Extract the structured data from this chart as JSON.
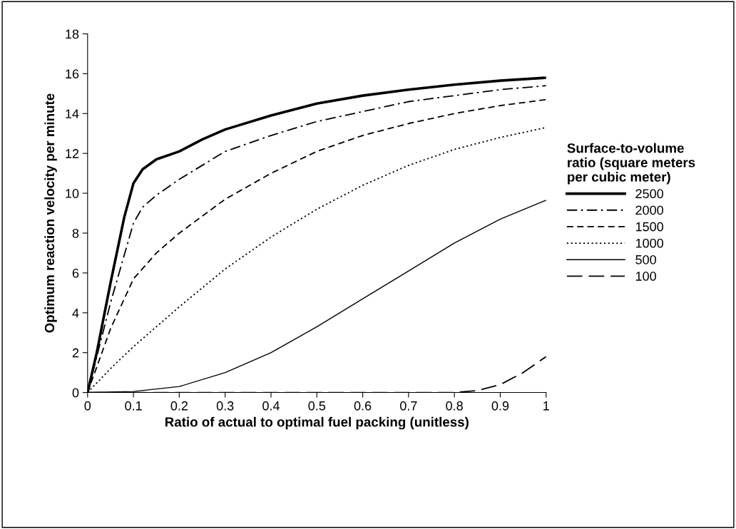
{
  "chart_data": {
    "type": "line",
    "xlabel": "Ratio of actual to optimal fuel packing (unitless)",
    "ylabel": "Optimum reaction velocity per minute",
    "legend_title": "Surface-to-volume\nratio (square meters\nper cubic meter)",
    "legend": "right",
    "grid": false,
    "marker": "none",
    "xlim": [
      0,
      1
    ],
    "ylim": [
      0,
      18
    ],
    "xticks": [
      0,
      0.1,
      0.2,
      0.3,
      0.4,
      0.5,
      0.6,
      0.7,
      0.8,
      0.9,
      1
    ],
    "yticks": [
      0,
      2,
      4,
      6,
      8,
      10,
      12,
      14,
      16,
      18
    ],
    "series": [
      {
        "name": "2500",
        "color": "#000000",
        "line_style": "solid",
        "x": [
          0,
          0.02,
          0.05,
          0.08,
          0.1,
          0.12,
          0.15,
          0.2,
          0.25,
          0.3,
          0.4,
          0.5,
          0.6,
          0.7,
          0.8,
          0.9,
          1
        ],
        "values": [
          0,
          2,
          5.5,
          8.8,
          10.5,
          11.2,
          11.7,
          12.1,
          12.7,
          13.2,
          13.9,
          14.5,
          14.9,
          15.2,
          15.45,
          15.65,
          15.8
        ]
      },
      {
        "name": "2000",
        "color": "#000000",
        "line_style": "dashdot",
        "x": [
          0,
          0.05,
          0.1,
          0.12,
          0.15,
          0.2,
          0.3,
          0.4,
          0.5,
          0.6,
          0.7,
          0.8,
          0.9,
          1
        ],
        "values": [
          0,
          4.5,
          8.5,
          9.3,
          9.9,
          10.7,
          12.1,
          12.9,
          13.6,
          14.1,
          14.6,
          14.9,
          15.2,
          15.4
        ]
      },
      {
        "name": "1500",
        "color": "#000000",
        "line_style": "dashed",
        "x": [
          0,
          0.05,
          0.1,
          0.15,
          0.2,
          0.3,
          0.4,
          0.5,
          0.6,
          0.7,
          0.8,
          0.9,
          1
        ],
        "values": [
          0,
          3.2,
          5.7,
          7.0,
          8.0,
          9.7,
          11.0,
          12.1,
          12.9,
          13.5,
          14.0,
          14.4,
          14.7
        ]
      },
      {
        "name": "1000",
        "color": "#000000",
        "line_style": "dotted",
        "x": [
          0,
          0.05,
          0.1,
          0.2,
          0.3,
          0.4,
          0.5,
          0.6,
          0.7,
          0.8,
          0.9,
          1
        ],
        "values": [
          0,
          1.2,
          2.3,
          4.3,
          6.2,
          7.8,
          9.2,
          10.4,
          11.4,
          12.2,
          12.8,
          13.3
        ]
      },
      {
        "name": "500",
        "color": "#000000",
        "line_style": "solid",
        "x": [
          0,
          0.1,
          0.2,
          0.3,
          0.4,
          0.5,
          0.6,
          0.7,
          0.8,
          0.9,
          1
        ],
        "values": [
          0,
          0.05,
          0.3,
          1.0,
          2.0,
          3.3,
          4.7,
          6.1,
          7.5,
          8.7,
          9.65
        ]
      },
      {
        "name": "100",
        "color": "#000000",
        "line_style": "longdash",
        "x": [
          0,
          0.2,
          0.4,
          0.6,
          0.8,
          0.85,
          0.9,
          0.95,
          1
        ],
        "values": [
          0,
          0,
          0,
          0,
          0,
          0.1,
          0.4,
          1.0,
          1.8
        ]
      }
    ]
  }
}
